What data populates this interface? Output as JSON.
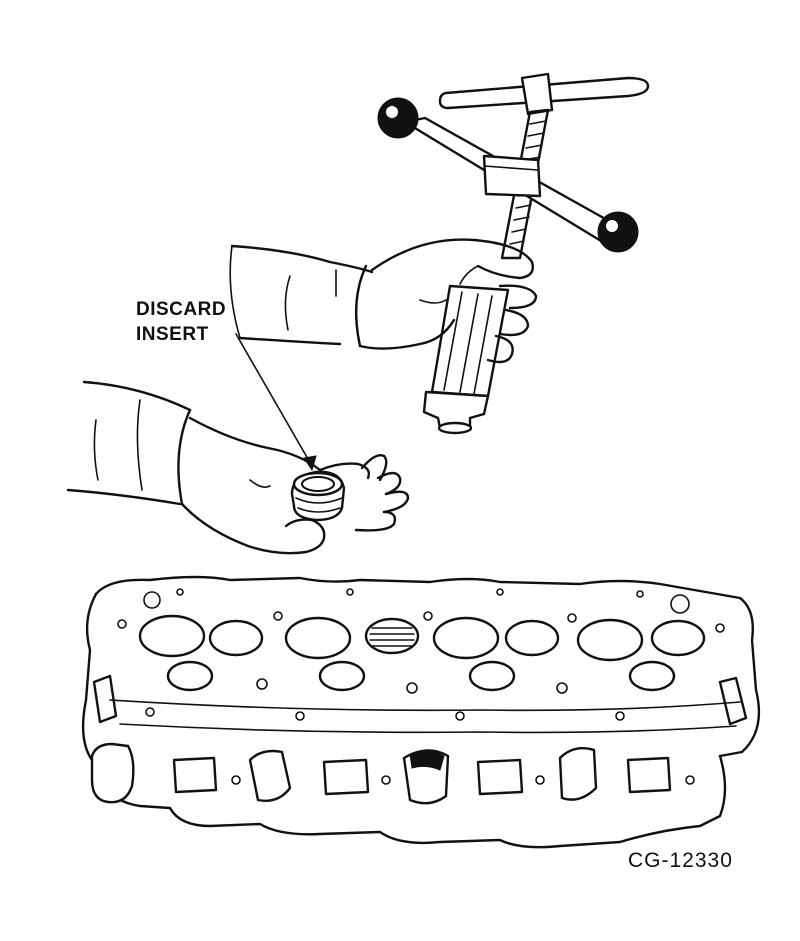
{
  "callout": {
    "line1": "DISCARD",
    "line2": "INSERT"
  },
  "figure_id": "CG-12330",
  "colors": {
    "ink": "#111111",
    "background": "#ffffff"
  },
  "illustration": {
    "items": [
      "puller-tool-icon",
      "upper-hand-icon",
      "lower-hand-icon",
      "valve-seat-insert-icon",
      "cylinder-head-icon"
    ]
  }
}
